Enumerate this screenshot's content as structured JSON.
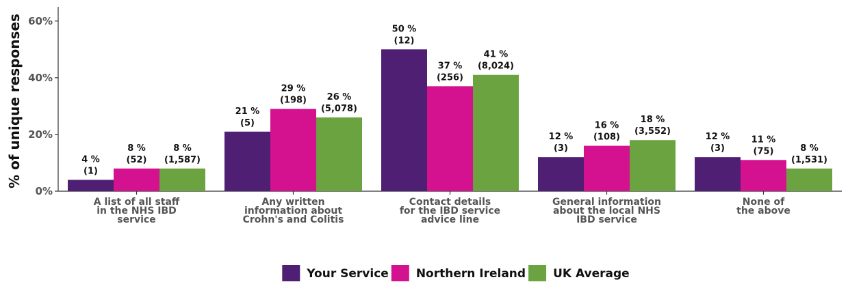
{
  "chart_data": {
    "type": "bar",
    "ylabel": "% of unique responses",
    "xlabel": "",
    "ylim": [
      0,
      65
    ],
    "yticks": [
      0,
      20,
      40,
      60
    ],
    "ytick_labels": [
      "0%",
      "20%",
      "40%",
      "60%"
    ],
    "grid": false,
    "legend_position": "bottom",
    "categories": [
      [
        "A list of all staff",
        "in the NHS IBD",
        "service"
      ],
      [
        "Any written",
        "information about",
        "Crohn's and Colitis"
      ],
      [
        "Contact details",
        "for the IBD service",
        "advice line"
      ],
      [
        "General information",
        "about the local NHS",
        "IBD service"
      ],
      [
        "None of",
        "the above"
      ]
    ],
    "series": [
      {
        "name": "Your Service",
        "color": "#4f1f73",
        "values": [
          4,
          21,
          50,
          12,
          12
        ],
        "labels": [
          "4 %",
          "21 %",
          "50 %",
          "12 %",
          "12 %"
        ],
        "counts": [
          "(1)",
          "(5)",
          "(12)",
          "(3)",
          "(3)"
        ]
      },
      {
        "name": "Northern Ireland",
        "color": "#d4118e",
        "values": [
          8,
          29,
          37,
          16,
          11
        ],
        "labels": [
          "8 %",
          "29 %",
          "37 %",
          "16 %",
          "11 %"
        ],
        "counts": [
          "(52)",
          "(198)",
          "(256)",
          "(108)",
          "(75)"
        ]
      },
      {
        "name": "UK Average",
        "color": "#6aa33f",
        "values": [
          8,
          26,
          41,
          18,
          8
        ],
        "labels": [
          "8 %",
          "26 %",
          "41 %",
          "18 %",
          "8 %"
        ],
        "counts": [
          "(1,587)",
          "(5,078)",
          "(8,024)",
          "(3,552)",
          "(1,531)"
        ]
      }
    ]
  }
}
